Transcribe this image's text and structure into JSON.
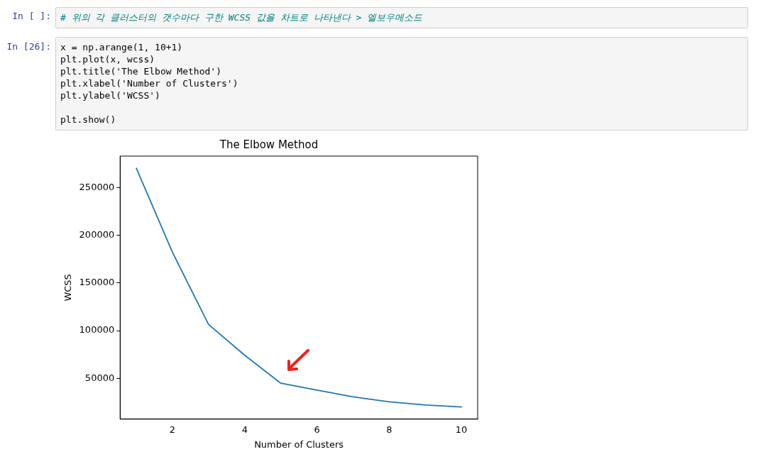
{
  "chart_data": {
    "type": "line",
    "title": "The Elbow Method",
    "xlabel": "Number of Clusters",
    "ylabel": "WCSS",
    "x": [
      1,
      2,
      3,
      4,
      5,
      6,
      7,
      8,
      9,
      10
    ],
    "series": [
      {
        "color": "#1f77b4",
        "values": [
          270000,
          182000,
          106400,
          74200,
          44900,
          37700,
          30600,
          25500,
          22100,
          20100
        ]
      }
    ],
    "xlim": [
      0.55,
      10.45
    ],
    "xticks": [
      2,
      4,
      6,
      8,
      10
    ],
    "ylim": [
      7300,
      282800
    ],
    "yticks": [
      50000,
      100000,
      150000,
      200000,
      250000
    ],
    "grid": false,
    "legend": false,
    "marker": "none",
    "line_style": "solid",
    "annotations": [
      "In [ ]:",
      "# 위의 각 클러스터의 갯수마다 구한 WCSS 값을 차트로 나타낸다 > 엘보우메소드",
      "In [26]:",
      "x = np.arange(1, 10+1)",
      "plt.plot(x, wcss)",
      "plt.title('The Elbow Method')",
      "plt.xlabel('Number of Clusters')",
      "plt.ylabel('WCSS')",
      null,
      "plt.show()"
    ]
  }
}
